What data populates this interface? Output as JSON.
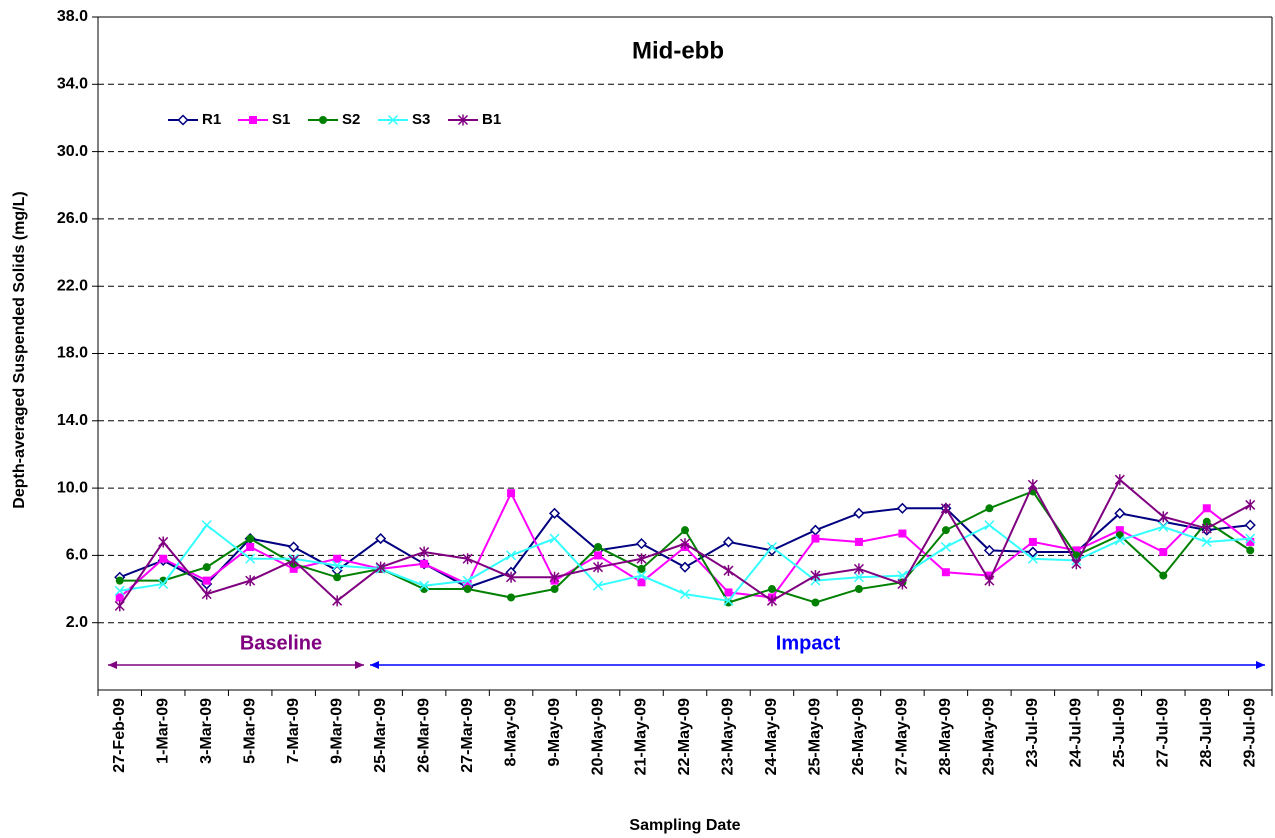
{
  "chart_data": {
    "type": "line",
    "title": "Mid-ebb",
    "x_label": "Sampling Date",
    "y_label": "Depth-averaged Suspended Solids (mg/L)",
    "categories": [
      "27-Feb-09",
      "1-Mar-09",
      "3-Mar-09",
      "5-Mar-09",
      "7-Mar-09",
      "9-Mar-09",
      "25-Mar-09",
      "26-Mar-09",
      "27-Mar-09",
      "8-May-09",
      "9-May-09",
      "20-May-09",
      "21-May-09",
      "22-May-09",
      "23-May-09",
      "24-May-09",
      "25-May-09",
      "26-May-09",
      "27-May-09",
      "28-May-09",
      "29-May-09",
      "23-Jul-09",
      "24-Jul-09",
      "25-Jul-09",
      "27-Jul-09",
      "28-Jul-09",
      "29-Jul-09"
    ],
    "series": [
      {
        "name": "R1",
        "color": "#000080",
        "marker": "diamond",
        "values": [
          4.7,
          5.7,
          4.3,
          7.0,
          6.5,
          5.1,
          7.0,
          5.5,
          4.1,
          5.0,
          8.5,
          6.3,
          6.7,
          5.3,
          6.8,
          6.3,
          7.5,
          8.5,
          8.8,
          8.8,
          6.3,
          6.2,
          6.2,
          8.5,
          8.0,
          7.5,
          7.8
        ]
      },
      {
        "name": "S1",
        "color": "#ff00ff",
        "marker": "square",
        "values": [
          3.5,
          5.8,
          4.5,
          6.5,
          5.2,
          5.8,
          5.2,
          5.5,
          4.3,
          9.7,
          4.5,
          6.0,
          4.4,
          6.5,
          3.8,
          3.5,
          7.0,
          6.8,
          7.3,
          5.0,
          4.8,
          6.8,
          6.3,
          7.5,
          6.2,
          8.8,
          6.8
        ]
      },
      {
        "name": "S2",
        "color": "#008000",
        "marker": "circle",
        "values": [
          4.5,
          4.5,
          5.3,
          7.0,
          5.5,
          4.7,
          5.2,
          4.0,
          4.0,
          3.5,
          4.0,
          6.5,
          5.2,
          7.5,
          3.2,
          4.0,
          3.2,
          4.0,
          4.4,
          7.5,
          8.8,
          9.8,
          6.0,
          7.2,
          4.8,
          8.0,
          6.3
        ]
      },
      {
        "name": "S3",
        "color": "#33ffff",
        "marker": "x",
        "values": [
          3.9,
          4.3,
          7.8,
          5.8,
          5.8,
          5.4,
          5.2,
          4.2,
          4.5,
          6.0,
          7.0,
          4.2,
          4.8,
          3.7,
          3.3,
          6.5,
          4.5,
          4.7,
          4.8,
          6.5,
          7.8,
          5.8,
          5.7,
          6.9,
          7.7,
          6.8,
          7.0
        ]
      },
      {
        "name": "B1",
        "color": "#800080",
        "marker": "star",
        "values": [
          3.0,
          6.8,
          3.7,
          4.5,
          5.7,
          3.3,
          5.3,
          6.2,
          5.8,
          4.7,
          4.7,
          5.3,
          5.8,
          6.7,
          5.1,
          3.3,
          4.8,
          5.2,
          4.3,
          8.8,
          4.5,
          10.2,
          5.5,
          10.5,
          8.3,
          7.6,
          9.0
        ]
      }
    ],
    "ylim": [
      -2,
      38
    ],
    "yticks": [
      {
        "value": 2,
        "label": "2.0"
      },
      {
        "value": 6,
        "label": "6.0"
      },
      {
        "value": 10,
        "label": "10.0"
      },
      {
        "value": 14,
        "label": "14.0"
      },
      {
        "value": 18,
        "label": "18.0"
      },
      {
        "value": 22,
        "label": "22.0"
      },
      {
        "value": 26,
        "label": "26.0"
      },
      {
        "value": 30,
        "label": "30.0"
      },
      {
        "value": 34,
        "label": "34.0"
      },
      {
        "value": 38,
        "label": "38.0"
      }
    ],
    "grid": true,
    "annotations": [
      {
        "text": "Baseline",
        "color": "#800080"
      },
      {
        "text": "Impact",
        "color": "#0000ff"
      }
    ]
  }
}
